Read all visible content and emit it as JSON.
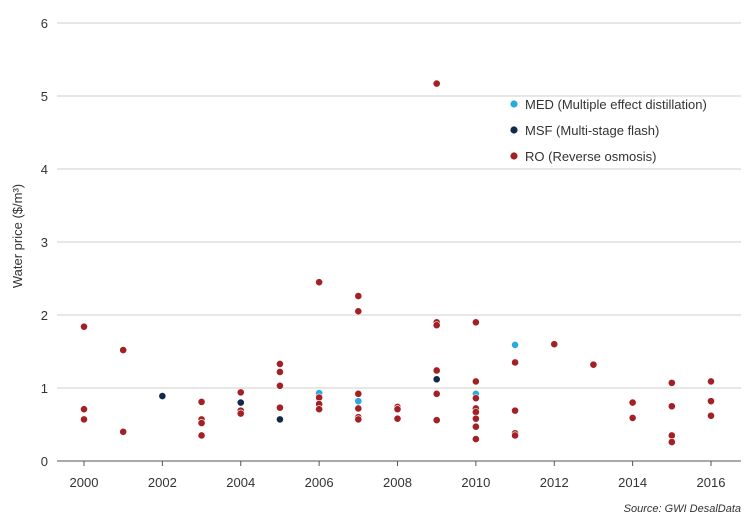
{
  "chart_data": {
    "type": "scatter",
    "ylabel": "Water price ($/m³)",
    "xlabel": "",
    "xlim": [
      2000,
      2016
    ],
    "ylim": [
      0,
      6
    ],
    "x_ticks": [
      "2000",
      "2002",
      "2004",
      "2006",
      "2008",
      "2010",
      "2012",
      "2014",
      "2016"
    ],
    "y_ticks": [
      "0",
      "1",
      "2",
      "3",
      "4",
      "5",
      "6"
    ],
    "grid": "horizontal",
    "legend_position": "top-right",
    "source": "Source: GWI DesalData",
    "series": [
      {
        "name": "MED (Multiple effect distillation)",
        "color": "#29a9e0",
        "points": [
          [
            2006,
            0.93
          ],
          [
            2007,
            0.82
          ],
          [
            2010,
            0.92
          ],
          [
            2011,
            1.59
          ]
        ]
      },
      {
        "name": "MSF (Multi-stage flash)",
        "color": "#13294b",
        "points": [
          [
            2002,
            0.89
          ],
          [
            2004,
            0.8
          ],
          [
            2005,
            0.57
          ],
          [
            2009,
            1.12
          ]
        ]
      },
      {
        "name": "RO (Reverse osmosis)",
        "color": "#a32024",
        "points": [
          [
            2000,
            1.84
          ],
          [
            2000,
            0.71
          ],
          [
            2000,
            0.57
          ],
          [
            2001,
            1.52
          ],
          [
            2001,
            0.4
          ],
          [
            2003,
            0.81
          ],
          [
            2003,
            0.57
          ],
          [
            2003,
            0.52
          ],
          [
            2003,
            0.35
          ],
          [
            2004,
            0.94
          ],
          [
            2004,
            0.69
          ],
          [
            2004,
            0.65
          ],
          [
            2005,
            1.33
          ],
          [
            2005,
            1.22
          ],
          [
            2005,
            1.03
          ],
          [
            2005,
            0.73
          ],
          [
            2006,
            2.45
          ],
          [
            2006,
            0.87
          ],
          [
            2006,
            0.78
          ],
          [
            2006,
            0.71
          ],
          [
            2007,
            2.26
          ],
          [
            2007,
            2.05
          ],
          [
            2007,
            0.92
          ],
          [
            2007,
            0.72
          ],
          [
            2007,
            0.6
          ],
          [
            2007,
            0.57
          ],
          [
            2008,
            0.74
          ],
          [
            2008,
            0.71
          ],
          [
            2008,
            0.58
          ],
          [
            2009,
            5.17
          ],
          [
            2009,
            1.9
          ],
          [
            2009,
            1.86
          ],
          [
            2009,
            1.24
          ],
          [
            2009,
            0.92
          ],
          [
            2009,
            0.56
          ],
          [
            2010,
            1.9
          ],
          [
            2010,
            1.09
          ],
          [
            2010,
            0.86
          ],
          [
            2010,
            0.72
          ],
          [
            2010,
            0.67
          ],
          [
            2010,
            0.58
          ],
          [
            2010,
            0.47
          ],
          [
            2010,
            0.3
          ],
          [
            2011,
            1.35
          ],
          [
            2011,
            0.69
          ],
          [
            2011,
            0.38
          ],
          [
            2011,
            0.35
          ],
          [
            2012,
            1.6
          ],
          [
            2013,
            1.32
          ],
          [
            2014,
            0.8
          ],
          [
            2014,
            0.59
          ],
          [
            2015,
            1.07
          ],
          [
            2015,
            0.75
          ],
          [
            2015,
            0.35
          ],
          [
            2015,
            0.26
          ],
          [
            2016,
            1.09
          ],
          [
            2016,
            0.82
          ],
          [
            2016,
            0.62
          ]
        ]
      }
    ]
  }
}
